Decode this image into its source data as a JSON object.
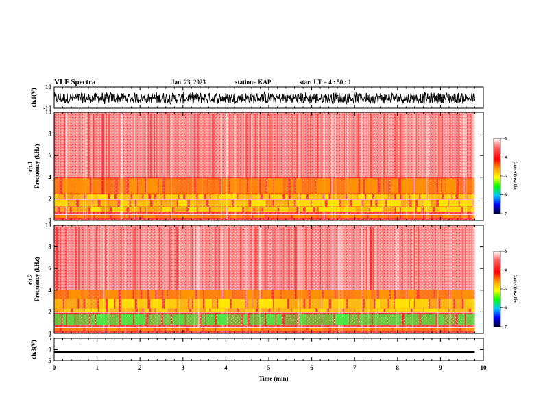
{
  "header": {
    "title": "VLF Spectra",
    "date": "Jan. 23, 2023",
    "station": "station= KAP",
    "start_ut": "start  UT =   4 : 50 : 1"
  },
  "colors": {
    "spectrum_low": "#ff3030",
    "spectrum_bg": "#ffffff",
    "band_orange": "#ff9900",
    "band_yellow": "#ffee00",
    "band_green": "#44ee44",
    "trace": "#000000"
  },
  "colorbar": {
    "label": "log(PSD)(V²/Hz)",
    "ticks": [
      "-3",
      "-4",
      "-5",
      "-6",
      "-7"
    ],
    "stops": [
      "#ffffff",
      "#ff4040",
      "#ff0000",
      "#ff9900",
      "#ffff00",
      "#00ff00",
      "#00c0ff",
      "#0000ff",
      "#000040"
    ]
  },
  "chart_data": [
    {
      "type": "line",
      "panel": "ch1_waveform",
      "ylabel": "ch.1(V)",
      "ylim": [
        -10,
        10
      ],
      "yticks": [
        "10",
        "-10"
      ],
      "x_range_min": [
        0,
        9.8
      ],
      "description_level": "noisy waveform mostly between -6 and 6 V"
    },
    {
      "type": "heatmap",
      "panel": "ch1_spectrogram",
      "ylabel": "ch.1\nFrequency (kHz)",
      "ylim": [
        0,
        10
      ],
      "yticks": [
        "0",
        "2",
        "4",
        "6",
        "8",
        "10"
      ],
      "x_range_min": [
        0,
        9.8
      ],
      "bands_khz": [
        {
          "from": 0.2,
          "to": 0.5,
          "level": -4.0
        },
        {
          "from": 0.8,
          "to": 1.2,
          "level": -4.3
        },
        {
          "from": 1.3,
          "to": 1.9,
          "level": -4.6
        },
        {
          "from": 2.0,
          "to": 2.4,
          "level": -4.2
        },
        {
          "from": 2.5,
          "to": 3.9,
          "level": -3.9
        }
      ]
    },
    {
      "type": "heatmap",
      "panel": "ch2_spectrogram",
      "ylabel": "ch.2\nFrequency (kHz)",
      "ylim": [
        0,
        10
      ],
      "yticks": [
        "0",
        "2",
        "4",
        "6",
        "8",
        "10"
      ],
      "x_range_min": [
        0,
        9.8
      ],
      "bands_khz": [
        {
          "from": 0.2,
          "to": 0.6,
          "level": -4.1
        },
        {
          "from": 0.8,
          "to": 1.8,
          "level": -5.0
        },
        {
          "from": 2.0,
          "to": 2.3,
          "level": -4.3
        },
        {
          "from": 2.3,
          "to": 3.2,
          "level": -4.5
        },
        {
          "from": 3.2,
          "to": 4.0,
          "level": -3.8
        }
      ]
    },
    {
      "type": "line",
      "panel": "ch3_waveform",
      "ylabel": "ch.3(V)",
      "ylim": [
        -5,
        5
      ],
      "yticks": [
        "5",
        "0",
        "-5"
      ],
      "x_range_min": [
        0,
        9.8
      ],
      "description_level": "thick flat trace near -1 V"
    }
  ],
  "xaxis": {
    "label": "Time (min)",
    "ticks": [
      "0",
      "1",
      "2",
      "3",
      "4",
      "5",
      "6",
      "7",
      "8",
      "9",
      "10"
    ],
    "xlim": [
      0,
      10
    ]
  }
}
